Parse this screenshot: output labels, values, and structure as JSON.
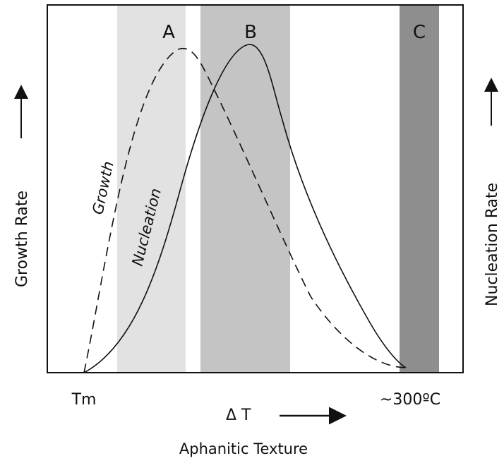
{
  "diagram": {
    "bands": [
      {
        "label": "A",
        "shade": "#e2e2e2"
      },
      {
        "label": "B",
        "shade": "#c4c4c4"
      },
      {
        "label": "C",
        "shade": "#8e8e8e"
      }
    ],
    "curves": {
      "growth": {
        "label": "Growth",
        "style": "dashed"
      },
      "nucleation": {
        "label": "Nucleation",
        "style": "solid"
      }
    },
    "axes": {
      "left_label": "Growth Rate",
      "right_label": "Nucleation Rate",
      "x_start": "Tm",
      "x_end": "~300ºC",
      "x_label": "Δ T"
    },
    "caption": "Aphanitic Texture",
    "colors": {
      "frame": "#111111",
      "curve": "#111111",
      "background": "#ffffff"
    }
  }
}
